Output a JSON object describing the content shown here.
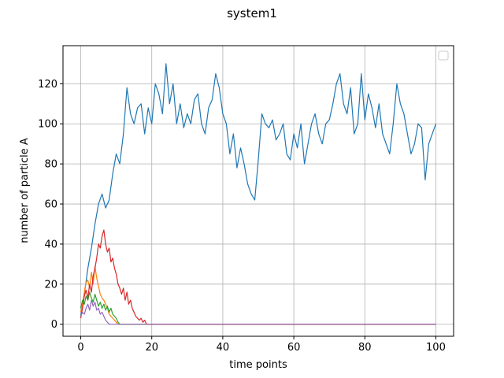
{
  "chart_data": {
    "type": "line",
    "title": "system1",
    "xlabel": "time points",
    "ylabel": "number of particle A",
    "xlim": [
      -5,
      105
    ],
    "ylim": [
      -6,
      139
    ],
    "xticks": [
      0,
      20,
      40,
      60,
      80,
      100
    ],
    "yticks": [
      0,
      20,
      40,
      60,
      80,
      100,
      120
    ],
    "grid": true,
    "legend": "top-right (empty)",
    "series": [
      {
        "color": "#1f77b4",
        "x": [
          0,
          1,
          2,
          3,
          4,
          5,
          6,
          7,
          8,
          9,
          10,
          11,
          12,
          13,
          14,
          15,
          16,
          17,
          18,
          19,
          20,
          21,
          22,
          23,
          24,
          25,
          26,
          27,
          28,
          29,
          30,
          31,
          32,
          33,
          34,
          35,
          36,
          37,
          38,
          39,
          40,
          41,
          42,
          43,
          44,
          45,
          46,
          47,
          48,
          49,
          50,
          51,
          52,
          53,
          54,
          55,
          56,
          57,
          58,
          59,
          60,
          61,
          62,
          63,
          64,
          65,
          66,
          67,
          68,
          69,
          70,
          71,
          72,
          73,
          74,
          75,
          76,
          77,
          78,
          79,
          80,
          81,
          82,
          83,
          84,
          85,
          86,
          87,
          88,
          89,
          90,
          91,
          92,
          93,
          94,
          95,
          96,
          97,
          98,
          99,
          100
        ],
        "y": [
          4,
          15,
          28,
          38,
          50,
          60,
          65,
          58,
          62,
          75,
          85,
          80,
          95,
          118,
          105,
          100,
          108,
          110,
          95,
          108,
          100,
          120,
          115,
          105,
          130,
          110,
          120,
          100,
          110,
          98,
          105,
          100,
          112,
          115,
          100,
          95,
          108,
          112,
          125,
          118,
          105,
          100,
          85,
          95,
          78,
          88,
          80,
          70,
          65,
          62,
          82,
          105,
          100,
          98,
          102,
          92,
          95,
          100,
          85,
          82,
          95,
          88,
          100,
          80,
          90,
          100,
          105,
          95,
          90,
          100,
          102,
          110,
          120,
          125,
          110,
          105,
          118,
          95,
          100,
          125,
          102,
          115,
          108,
          98,
          110,
          95,
          90,
          85,
          100,
          120,
          110,
          105,
          95,
          85,
          90,
          100,
          98,
          72,
          90,
          95,
          100
        ]
      },
      {
        "color": "#ff7f0e",
        "x": [
          0,
          0.5,
          1,
          1.5,
          2,
          2.5,
          3,
          3.5,
          4,
          4.5,
          5,
          5.5,
          6,
          6.5,
          7,
          7.5,
          8,
          8.5,
          9,
          9.5,
          10,
          10.5,
          11,
          100
        ],
        "y": [
          6,
          10,
          16,
          21,
          22,
          18,
          26,
          20,
          29,
          23,
          19,
          15,
          13,
          12,
          10,
          8,
          5,
          4,
          3,
          2,
          1,
          0,
          0,
          0
        ]
      },
      {
        "color": "#2ca02c",
        "x": [
          0,
          0.5,
          1,
          1.5,
          2,
          2.5,
          3,
          3.5,
          4,
          4.5,
          5,
          5.5,
          6,
          6.5,
          7,
          7.5,
          8,
          8.5,
          9,
          9.5,
          10,
          10.5,
          11,
          100
        ],
        "y": [
          8,
          12,
          10,
          14,
          12,
          16,
          13,
          11,
          15,
          12,
          9,
          11,
          8,
          10,
          7,
          9,
          6,
          8,
          5,
          4,
          3,
          1,
          0,
          0
        ]
      },
      {
        "color": "#d62728",
        "x": [
          0,
          0.5,
          1,
          1.5,
          2,
          2.5,
          3,
          3.5,
          4,
          4.5,
          5,
          5.5,
          6,
          6.5,
          7,
          7.5,
          8,
          8.5,
          9,
          9.5,
          10,
          10.5,
          11,
          11.5,
          12,
          12.5,
          13,
          13.5,
          14,
          14.5,
          15,
          15.5,
          16,
          16.5,
          17,
          17.5,
          18,
          18.5,
          100
        ],
        "y": [
          3,
          8,
          14,
          17,
          13,
          20,
          16,
          24,
          28,
          33,
          40,
          38,
          44,
          47,
          40,
          36,
          38,
          31,
          33,
          28,
          25,
          20,
          18,
          15,
          18,
          12,
          16,
          10,
          12,
          8,
          6,
          4,
          3,
          2,
          3,
          1,
          2,
          0,
          0
        ]
      },
      {
        "color": "#9467bd",
        "x": [
          0,
          0.5,
          1,
          1.5,
          2,
          2.5,
          3,
          3.5,
          4,
          4.5,
          5,
          5.5,
          6,
          6.5,
          7,
          7.5,
          8,
          100
        ],
        "y": [
          4,
          6,
          5,
          8,
          10,
          7,
          12,
          9,
          11,
          7,
          8,
          5,
          6,
          4,
          2,
          1,
          0,
          0
        ]
      }
    ]
  }
}
